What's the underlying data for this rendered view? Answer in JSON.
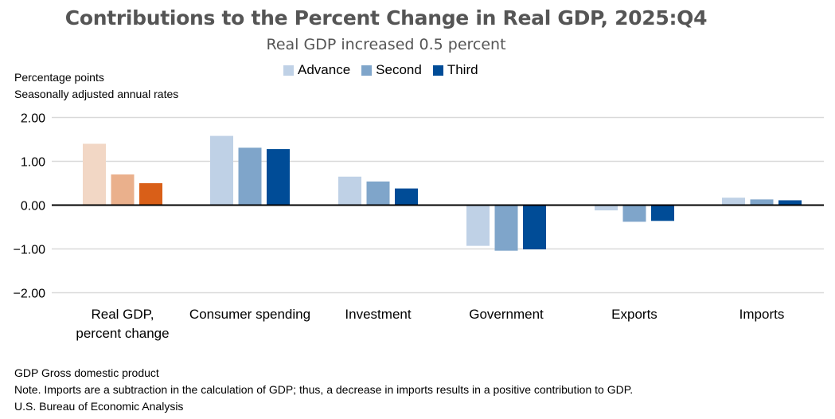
{
  "chart_data": {
    "type": "bar",
    "title": "Contributions to the Percent Change in Real GDP, 2025:Q4",
    "subtitle": "Real GDP increased 0.5 percent",
    "ylabel_lines": [
      "Percentage points",
      "Seasonally adjusted annual rates"
    ],
    "categories": [
      [
        "Real GDP,",
        "percent change"
      ],
      [
        "Consumer spending"
      ],
      [
        "Investment"
      ],
      [
        "Government"
      ],
      [
        "Exports"
      ],
      [
        "Imports"
      ]
    ],
    "series": [
      {
        "name": "Advance",
        "values": [
          1.4,
          1.58,
          0.65,
          -0.93,
          -0.12,
          0.17
        ]
      },
      {
        "name": "Second",
        "values": [
          0.7,
          1.31,
          0.54,
          -1.04,
          -0.38,
          0.13
        ]
      },
      {
        "name": "Third",
        "values": [
          0.5,
          1.28,
          0.38,
          -1.01,
          -0.36,
          0.11
        ]
      }
    ],
    "yticks": [
      "2.00",
      "1.00",
      "0.00",
      "−1.00",
      "−2.00"
    ],
    "ylim": [
      -2,
      2
    ],
    "grid": true,
    "legend": "top-center",
    "colors": {
      "series_blue": [
        "#bfd1e6",
        "#7fa5ca",
        "#004c97"
      ],
      "real_gdp_orange": [
        "#f2d7c5",
        "#eab08c",
        "#d95f18"
      ]
    }
  },
  "footer": {
    "line1": "GDP Gross domestic product",
    "line2": "Note. Imports are a subtraction in the calculation of GDP; thus, a decrease in imports results in a positive contribution to GDP.",
    "line3": "U.S. Bureau of Economic Analysis"
  }
}
